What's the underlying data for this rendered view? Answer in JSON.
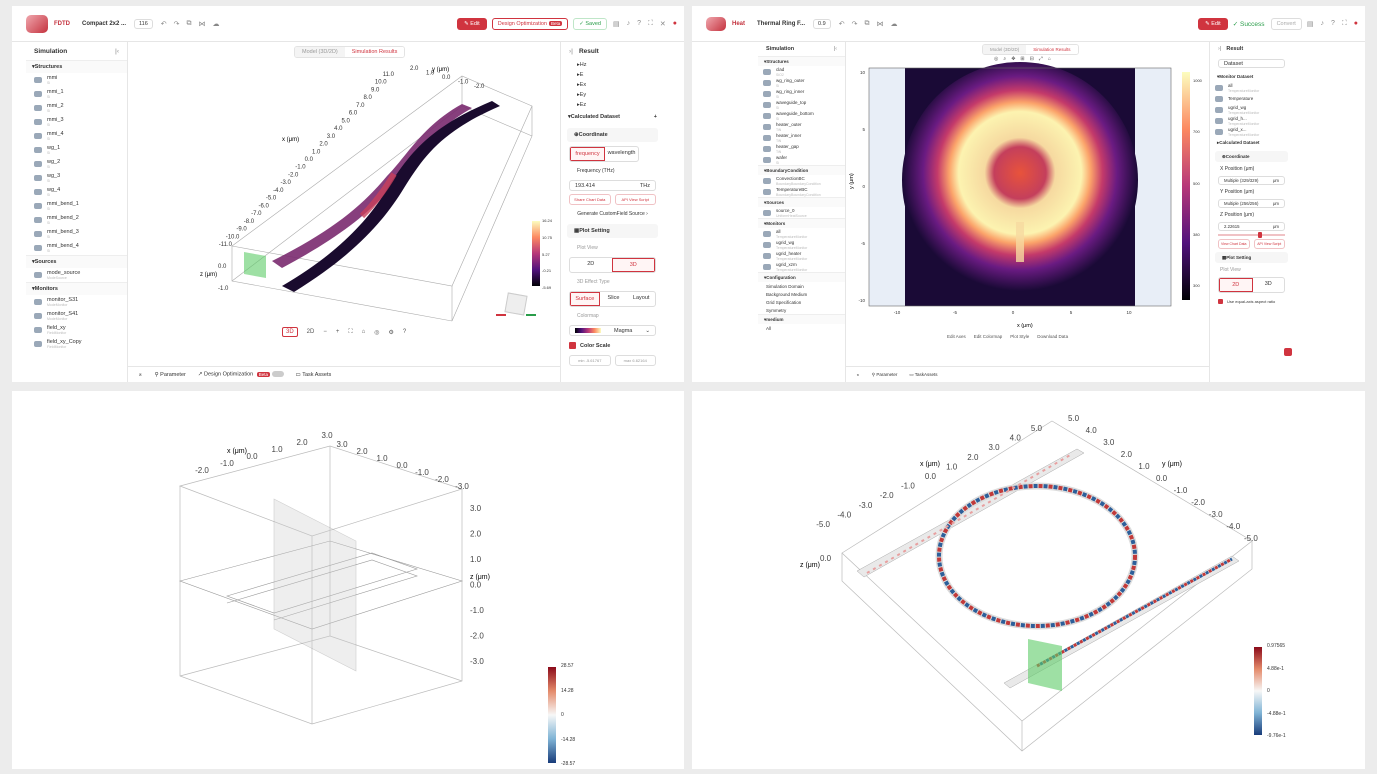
{
  "q1": {
    "topbar": {
      "brand": "FDTD",
      "project": "Compact 2x2 ...",
      "version": "116",
      "edit": "Edit",
      "design_opt": "Design Optimization",
      "beta": "Beta",
      "saved": "Saved"
    },
    "sidebar": {
      "title": "Simulation",
      "structures_label": "Structures",
      "structures": [
        {
          "name": "mmi",
          "sub": "Si"
        },
        {
          "name": "mmi_1",
          "sub": "Si"
        },
        {
          "name": "mmi_2",
          "sub": "Si"
        },
        {
          "name": "mmi_3",
          "sub": "Si"
        },
        {
          "name": "mmi_4",
          "sub": "Si"
        },
        {
          "name": "wg_1",
          "sub": "Si"
        },
        {
          "name": "wg_2",
          "sub": "Si"
        },
        {
          "name": "wg_3",
          "sub": "Si"
        },
        {
          "name": "wg_4",
          "sub": "Si"
        },
        {
          "name": "mmi_bend_1",
          "sub": "Si"
        },
        {
          "name": "mmi_bend_2",
          "sub": "Si"
        },
        {
          "name": "mmi_bend_3",
          "sub": "Si"
        },
        {
          "name": "mmi_bend_4",
          "sub": "Si"
        }
      ],
      "sources_label": "Sources",
      "sources": [
        {
          "name": "mode_source",
          "sub": "ModeSource"
        }
      ],
      "monitors_label": "Monitors",
      "monitors": [
        {
          "name": "monitor_S31",
          "sub": "ModeMonitor"
        },
        {
          "name": "monitor_S41",
          "sub": "ModeMonitor"
        },
        {
          "name": "field_xy",
          "sub": "FieldMonitor"
        },
        {
          "name": "field_xy_Copy",
          "sub": "FieldMonitor"
        }
      ]
    },
    "tabs": [
      "Model (3D/2D)",
      "Simulation Results"
    ],
    "axis_title_x": "x (μm)",
    "axis_title_y": "y (μm)",
    "axis_title_z": "z (μm)",
    "x_ticks": [
      "11.0",
      "10.0",
      "9.0",
      "8.0",
      "7.0",
      "6.0",
      "5.0",
      "4.0",
      "3.0",
      "2.0",
      "1.0",
      "0.0",
      "-1.0",
      "-2.0",
      "-3.0",
      "-4.0",
      "-5.0",
      "-6.0",
      "-7.0",
      "-8.0",
      "-9.0",
      "-10.0",
      "-11.0"
    ],
    "y_ticks": [
      "2.0",
      "1.0",
      "0.0",
      "-1.0",
      "-2.0"
    ],
    "z_ticks": [
      "0.0",
      "-1.0"
    ],
    "colorbar": [
      "16.24",
      "10.75",
      "5.27",
      "-0.21",
      "-5.69"
    ],
    "view_controls": {
      "b3d": "3D",
      "b2d": "2D"
    },
    "result": {
      "title": "Result",
      "components": [
        "Hz",
        "E",
        "Ex",
        "Ey",
        "Ez"
      ],
      "calc_dataset": "Calculated Dataset",
      "coordinate": "Coordinate",
      "freq_btn": "frequency",
      "wl_btn": "wavelength",
      "freq_label": "Frequency (THz)",
      "freq_value": "193.414",
      "freq_unit": "THz",
      "btn_chart": "Share Chart Data",
      "btn_script": "API View Script",
      "gen_source": "Generate CustomField Source",
      "plot_setting": "Plot Setting",
      "plot_view": "Plot View",
      "v2d": "2D",
      "v3d": "3D",
      "effect_label": "3D Effect Type",
      "effects": [
        "Surface",
        "Slice",
        "Layout"
      ],
      "colormap_label": "Colormap",
      "colormap": "Magma",
      "color_scale": "Color Scale",
      "min_label": "min",
      "min_val": "-5.61767",
      "max_label": "max",
      "max_val": "6.62164"
    },
    "bottom": {
      "parameter": "Parameter",
      "design_opt": "Design Optimization",
      "beta": "Beta",
      "task_assets": "Task Assets"
    }
  },
  "q2": {
    "topbar": {
      "brand": "Heat",
      "project": "Thermal Ring F...",
      "version": "0.9",
      "edit": "Edit",
      "success": "Success",
      "extra": "Convert"
    },
    "sidebar": {
      "title": "Simulation",
      "structures_label": "Structures",
      "structures": [
        {
          "name": "clad",
          "sub": "SiO2"
        },
        {
          "name": "wg_ring_outer",
          "sub": "Si"
        },
        {
          "name": "wg_ring_inner",
          "sub": "Si"
        },
        {
          "name": "waveguide_top",
          "sub": "Si"
        },
        {
          "name": "waveguide_bottom",
          "sub": "Si"
        },
        {
          "name": "heater_outer",
          "sub": "TiN"
        },
        {
          "name": "heater_inner",
          "sub": "TiN"
        },
        {
          "name": "heater_gap",
          "sub": "TiN"
        },
        {
          "name": "wafer",
          "sub": "Si"
        }
      ],
      "bc_label": "BoundaryCondition",
      "bcs": [
        {
          "name": "ConvectionBC",
          "sub": "BoundaryBoundaryCondition"
        },
        {
          "name": "TemperatureBC",
          "sub": "BoundaryBoundaryCondition"
        }
      ],
      "sources_label": "Sources",
      "sources": [
        {
          "name": "source_0",
          "sub": "UniformHeatSource"
        }
      ],
      "monitors_label": "Monitors",
      "monitors": [
        {
          "name": "all",
          "sub": "TemperatureMonitor"
        },
        {
          "name": "ugrid_wg",
          "sub": "TemperatureMonitor"
        },
        {
          "name": "ugrid_heater",
          "sub": "TemperatureMonitor"
        },
        {
          "name": "ugrid_xzm",
          "sub": "TemperatureMonitor"
        }
      ],
      "config_label": "Configuration",
      "configs": [
        "Simulation Domain",
        "Background Medium",
        "Grid Specification",
        "Symmetry"
      ],
      "medium_label": "medium",
      "medium": [
        "All"
      ]
    },
    "tabs": [
      "Model (3D/2D)",
      "Simulation Results"
    ],
    "xlabel": "x (μm)",
    "ylabel": "y (μm)",
    "x_ticks": [
      "-10",
      "-5",
      "0",
      "5",
      "10"
    ],
    "y_ticks": [
      "10",
      "5",
      "0",
      "-5",
      "-10"
    ],
    "colorbar": [
      "1000",
      "700",
      "500",
      "380",
      "300"
    ],
    "chart_actions": [
      "Edit Axes",
      "Edit Colormap",
      "Plot Style",
      "Download Data"
    ],
    "result": {
      "title": "Result",
      "dataset": "Dataset",
      "monitor_dataset": "Monitor Dataset",
      "monitors": [
        {
          "name": "all",
          "sub": "TemperatureMonitor"
        },
        {
          "name": "Temperature",
          "sub": ""
        },
        {
          "name": "ugrid_wg",
          "sub": "TemperatureMonitor"
        },
        {
          "name": "ugrid_h...",
          "sub": "TemperatureMonitor"
        },
        {
          "name": "ugrid_x...",
          "sub": "TemperatureMonitor"
        }
      ],
      "calc_dataset": "Calculated Dataset",
      "coordinate": "Coordinate",
      "xpos_label": "X Position (μm)",
      "xpos_val": "Multiple (329/329)",
      "ypos_label": "Y Position (μm)",
      "ypos_val": "Multiple (256/256)",
      "zpos_label": "Z Position (μm)",
      "zpos_val": "2.22615",
      "unit": "μm",
      "btn_chart": "View Chart Data",
      "btn_script": "API View Script",
      "plot_setting": "Plot Setting",
      "plot_view": "Plot View",
      "v2d": "2D",
      "v3d": "3D",
      "aspect": "Use equal-axis aspect ratio"
    },
    "bottom": {
      "parameter": "Parameter",
      "task_assets": "TaskAssets"
    }
  },
  "q3": {
    "axis_title_x": "x (μm)",
    "axis_title_z": "z (μm)",
    "top_ticks": [
      "-2.0",
      "-1.0",
      "0.0",
      "1.0",
      "2.0",
      "3.0",
      "3.0",
      "2.0",
      "1.0",
      "0.0",
      "-1.0",
      "-2.0",
      "-3.0"
    ],
    "z_ticks": [
      "3.0",
      "2.0",
      "1.0",
      "0.0",
      "-1.0",
      "-2.0",
      "-3.0"
    ],
    "colorbar": [
      "28.57",
      "14.28",
      "0",
      "-14.28",
      "-28.57"
    ]
  },
  "q4": {
    "axis_title_x": "x (μm)",
    "axis_title_y": "y (μm)",
    "axis_title_z": "z (μm)",
    "x_ticks": [
      "5.0",
      "4.0",
      "3.0",
      "2.0",
      "1.0",
      "0.0",
      "-1.0",
      "-2.0",
      "-3.0",
      "-4.0",
      "-5.0"
    ],
    "y_ticks": [
      "5.0",
      "4.0",
      "3.0",
      "2.0",
      "1.0",
      "0.0",
      "-1.0",
      "-2.0",
      "-3.0",
      "-4.0",
      "-5.0"
    ],
    "z_ticks": [
      "0.0"
    ],
    "colorbar": [
      "0.97565",
      "4.88e-1",
      "0",
      "-4.88e-1",
      "-9.76e-1"
    ]
  }
}
